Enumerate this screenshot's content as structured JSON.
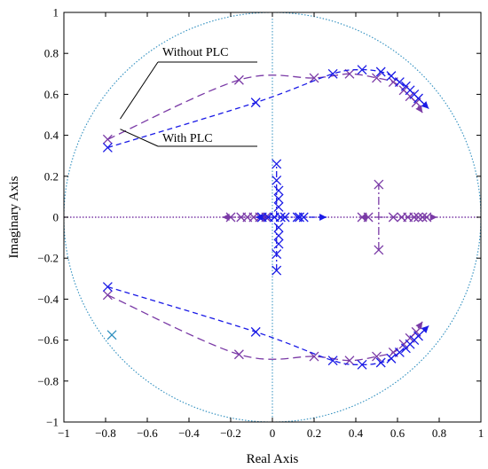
{
  "chart_data": {
    "type": "scatter",
    "title": "",
    "xlabel": "Real Axis",
    "ylabel": "Imaginary Axis",
    "xlim": [
      -1,
      1
    ],
    "ylim": [
      -1,
      1
    ],
    "xticks": [
      "−1",
      "−0.8",
      "−0.6",
      "−0.4",
      "−0.2",
      "0",
      "0.2",
      "0.4",
      "0.6",
      "0.8",
      "1"
    ],
    "yticks": [
      "−1",
      "−0.8",
      "−0.6",
      "−0.4",
      "−0.2",
      "0",
      "0.2",
      "0.4",
      "0.6",
      "0.8",
      "1"
    ],
    "grid": false,
    "unit_circle": true,
    "annotations": [
      {
        "text": "Without PLC",
        "target": [
          -0.73,
          0.48
        ]
      },
      {
        "text": "With PLC",
        "target": [
          -0.73,
          0.43
        ]
      }
    ],
    "colors": {
      "with_plc": "#1a1ae6",
      "without_plc": "#7a3aa6",
      "circle": "#2f8fbf",
      "extra": "#2f8fbf"
    },
    "series": [
      {
        "name": "Without PLC",
        "color": "#7a3aa6",
        "paths": [
          [
            [
              -0.79,
              0.38
            ],
            [
              -0.16,
              0.67
            ],
            [
              0.2,
              0.68
            ],
            [
              0.37,
              0.7
            ],
            [
              0.5,
              0.68
            ],
            [
              0.58,
              0.66
            ],
            [
              0.63,
              0.62
            ],
            [
              0.66,
              0.59
            ],
            [
              0.69,
              0.56
            ],
            [
              0.7,
              0.54
            ],
            [
              0.72,
              0.51
            ]
          ],
          [
            [
              -0.79,
              -0.38
            ],
            [
              -0.16,
              -0.67
            ],
            [
              0.2,
              -0.68
            ],
            [
              0.37,
              -0.7
            ],
            [
              0.5,
              -0.68
            ],
            [
              0.58,
              -0.66
            ],
            [
              0.63,
              -0.62
            ],
            [
              0.66,
              -0.59
            ],
            [
              0.69,
              -0.56
            ],
            [
              0.7,
              -0.54
            ],
            [
              0.72,
              -0.51
            ]
          ],
          [
            [
              -0.24,
              0.0
            ],
            [
              -0.01,
              0.0
            ]
          ],
          [
            [
              0.42,
              0.0
            ],
            [
              0.79,
              0.0
            ]
          ],
          [
            [
              0.51,
              -0.16
            ],
            [
              0.51,
              0.16
            ]
          ]
        ],
        "markers": [
          [
            -0.79,
            0.38
          ],
          [
            -0.16,
            0.67
          ],
          [
            0.2,
            0.68
          ],
          [
            0.37,
            0.7
          ],
          [
            0.5,
            0.68
          ],
          [
            0.58,
            0.66
          ],
          [
            0.63,
            0.62
          ],
          [
            0.66,
            0.59
          ],
          [
            0.69,
            0.56
          ],
          [
            -0.79,
            -0.38
          ],
          [
            -0.16,
            -0.67
          ],
          [
            0.2,
            -0.68
          ],
          [
            0.37,
            -0.7
          ],
          [
            0.5,
            -0.68
          ],
          [
            0.58,
            -0.66
          ],
          [
            0.63,
            -0.62
          ],
          [
            0.66,
            -0.59
          ],
          [
            0.69,
            -0.56
          ],
          [
            -0.2,
            0.0
          ],
          [
            -0.15,
            0.0
          ],
          [
            -0.12,
            0.0
          ],
          [
            -0.09,
            0.0
          ],
          [
            -0.06,
            0.0
          ],
          [
            -0.03,
            0.0
          ],
          [
            0.43,
            0.0
          ],
          [
            0.46,
            0.0
          ],
          [
            0.58,
            0.0
          ],
          [
            0.62,
            0.0
          ],
          [
            0.65,
            0.0
          ],
          [
            0.68,
            0.0
          ],
          [
            0.7,
            0.0
          ],
          [
            0.72,
            0.0
          ],
          [
            0.74,
            0.0
          ],
          [
            0.51,
            0.16
          ],
          [
            0.51,
            -0.16
          ]
        ]
      },
      {
        "name": "With PLC",
        "color": "#1a1ae6",
        "paths": [
          [
            [
              -0.79,
              0.34
            ],
            [
              -0.08,
              0.56
            ],
            [
              0.29,
              0.7
            ],
            [
              0.43,
              0.72
            ],
            [
              0.52,
              0.71
            ],
            [
              0.57,
              0.69
            ],
            [
              0.61,
              0.66
            ],
            [
              0.64,
              0.64
            ],
            [
              0.66,
              0.62
            ],
            [
              0.68,
              0.6
            ],
            [
              0.7,
              0.58
            ],
            [
              0.72,
              0.56
            ],
            [
              0.75,
              0.53
            ]
          ],
          [
            [
              -0.79,
              -0.34
            ],
            [
              -0.08,
              -0.56
            ],
            [
              0.29,
              -0.7
            ],
            [
              0.43,
              -0.72
            ],
            [
              0.52,
              -0.71
            ],
            [
              0.57,
              -0.69
            ],
            [
              0.61,
              -0.66
            ],
            [
              0.64,
              -0.64
            ],
            [
              0.66,
              -0.62
            ],
            [
              0.68,
              -0.6
            ],
            [
              0.7,
              -0.58
            ],
            [
              0.72,
              -0.56
            ],
            [
              0.75,
              -0.53
            ]
          ],
          [
            [
              0.02,
              -0.26
            ],
            [
              0.02,
              0.26
            ]
          ],
          [
            [
              -0.08,
              0.0
            ],
            [
              0.26,
              0.0
            ]
          ]
        ],
        "markers": [
          [
            -0.79,
            0.34
          ],
          [
            -0.08,
            0.56
          ],
          [
            0.29,
            0.7
          ],
          [
            0.43,
            0.72
          ],
          [
            0.52,
            0.71
          ],
          [
            0.57,
            0.69
          ],
          [
            0.61,
            0.66
          ],
          [
            0.64,
            0.64
          ],
          [
            0.66,
            0.62
          ],
          [
            0.68,
            0.6
          ],
          [
            0.7,
            0.58
          ],
          [
            -0.79,
            -0.34
          ],
          [
            -0.08,
            -0.56
          ],
          [
            0.29,
            -0.7
          ],
          [
            0.43,
            -0.72
          ],
          [
            0.52,
            -0.71
          ],
          [
            0.57,
            -0.69
          ],
          [
            0.61,
            -0.66
          ],
          [
            0.64,
            -0.64
          ],
          [
            0.66,
            -0.62
          ],
          [
            0.68,
            -0.6
          ],
          [
            0.7,
            -0.58
          ],
          [
            0.02,
            0.26
          ],
          [
            0.02,
            0.18
          ],
          [
            0.03,
            0.13
          ],
          [
            0.03,
            0.09
          ],
          [
            0.03,
            0.05
          ],
          [
            0.03,
            -0.05
          ],
          [
            0.03,
            -0.09
          ],
          [
            0.03,
            -0.13
          ],
          [
            0.02,
            -0.18
          ],
          [
            0.02,
            -0.26
          ],
          [
            -0.05,
            0.0
          ],
          [
            -0.02,
            0.0
          ],
          [
            0.01,
            0.0
          ],
          [
            0.04,
            0.0
          ],
          [
            0.06,
            0.0
          ],
          [
            0.12,
            0.0
          ],
          [
            0.13,
            0.0
          ],
          [
            0.15,
            0.0
          ]
        ]
      },
      {
        "name": "",
        "color": "#2f8fbf",
        "paths": [],
        "markers": [
          [
            -0.77,
            -0.575
          ]
        ]
      }
    ]
  }
}
